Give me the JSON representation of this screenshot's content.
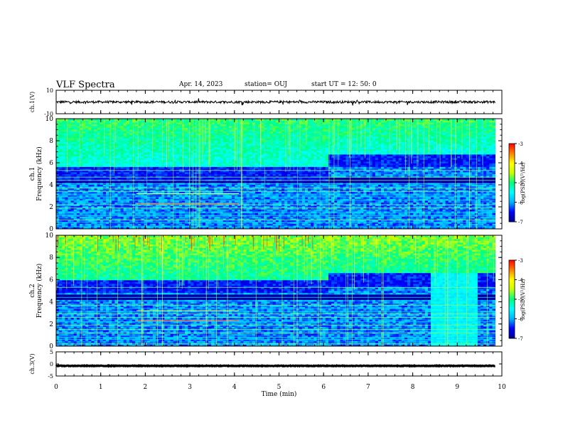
{
  "header": {
    "title": "VLF Spectra",
    "date": "Apr. 14, 2023",
    "station": "station= OUJ",
    "start": "start  UT  =   12: 50: 0"
  },
  "chart_data": {
    "type": "heatmap",
    "x_axis": {
      "label": "Time  (min)",
      "range": [
        0,
        10
      ],
      "ticks": [
        "0",
        "1",
        "2",
        "3",
        "4",
        "5",
        "6",
        "7",
        "8",
        "9",
        "10"
      ],
      "data_end": 9.85
    },
    "panels": [
      {
        "id": "ch1_waveform",
        "type": "line",
        "ylabel": "ch.1(V)",
        "ylim": [
          -10,
          10
        ],
        "ytick_labels": [
          "10",
          "-10"
        ],
        "baseline": 0,
        "color": "#000000"
      },
      {
        "id": "ch1_spectrogram",
        "type": "heatmap",
        "ylabel_ch": "ch.1",
        "ylabel": "Frequency  (kHz)",
        "ylim": [
          0,
          10
        ],
        "ytick_labels": [
          "0",
          "2",
          "4",
          "6",
          "8",
          "10"
        ],
        "colorbar": {
          "label": "log(PSD)(V²/Hz)",
          "range": [
            -7,
            -3
          ],
          "ticks": [
            "-3",
            "-4",
            "-5",
            "-6",
            "-7"
          ]
        },
        "noise_boundary_khz": [
          [
            0,
            5.6
          ],
          [
            6,
            5.6
          ],
          [
            6.05,
            6.8
          ],
          [
            9.85,
            6.8
          ]
        ],
        "wideband_intervals_min": [
          [
            0,
            9.85
          ]
        ],
        "slow_line_interval_min": [
          1.8,
          4.1
        ]
      },
      {
        "id": "ch2_spectrogram",
        "type": "heatmap",
        "ylabel_ch": "ch.2",
        "ylabel": "Frequency  (kHz)",
        "ylim": [
          0,
          10
        ],
        "ytick_labels": [
          "0",
          "2",
          "4",
          "6",
          "8",
          "10"
        ],
        "colorbar": {
          "label": "log(PSD)(V²/Hz)",
          "range": [
            -7,
            -3
          ],
          "ticks": [
            "-3",
            "-4",
            "-5",
            "-6",
            "-7"
          ]
        },
        "noise_boundary_khz": [
          [
            0,
            6.0
          ],
          [
            6,
            6.0
          ],
          [
            6.05,
            6.6
          ],
          [
            9.85,
            6.6
          ]
        ],
        "cyan_block_min": [
          8.4,
          9.4
        ],
        "slow_line_interval_min": [
          1.8,
          4.1
        ]
      },
      {
        "id": "ch3_waveform",
        "type": "line",
        "ylabel": "ch.3(V)",
        "ylim": [
          -5,
          5
        ],
        "ytick_labels": [
          "5",
          "0",
          "-5"
        ],
        "baseline": -0.8,
        "color": "#000000"
      }
    ],
    "colormap": [
      "#00008f",
      "#0000ff",
      "#00b4ff",
      "#00ffff",
      "#00ff80",
      "#c8ff00",
      "#ffff00",
      "#ff8000",
      "#ff0000",
      "#ffffff"
    ]
  }
}
